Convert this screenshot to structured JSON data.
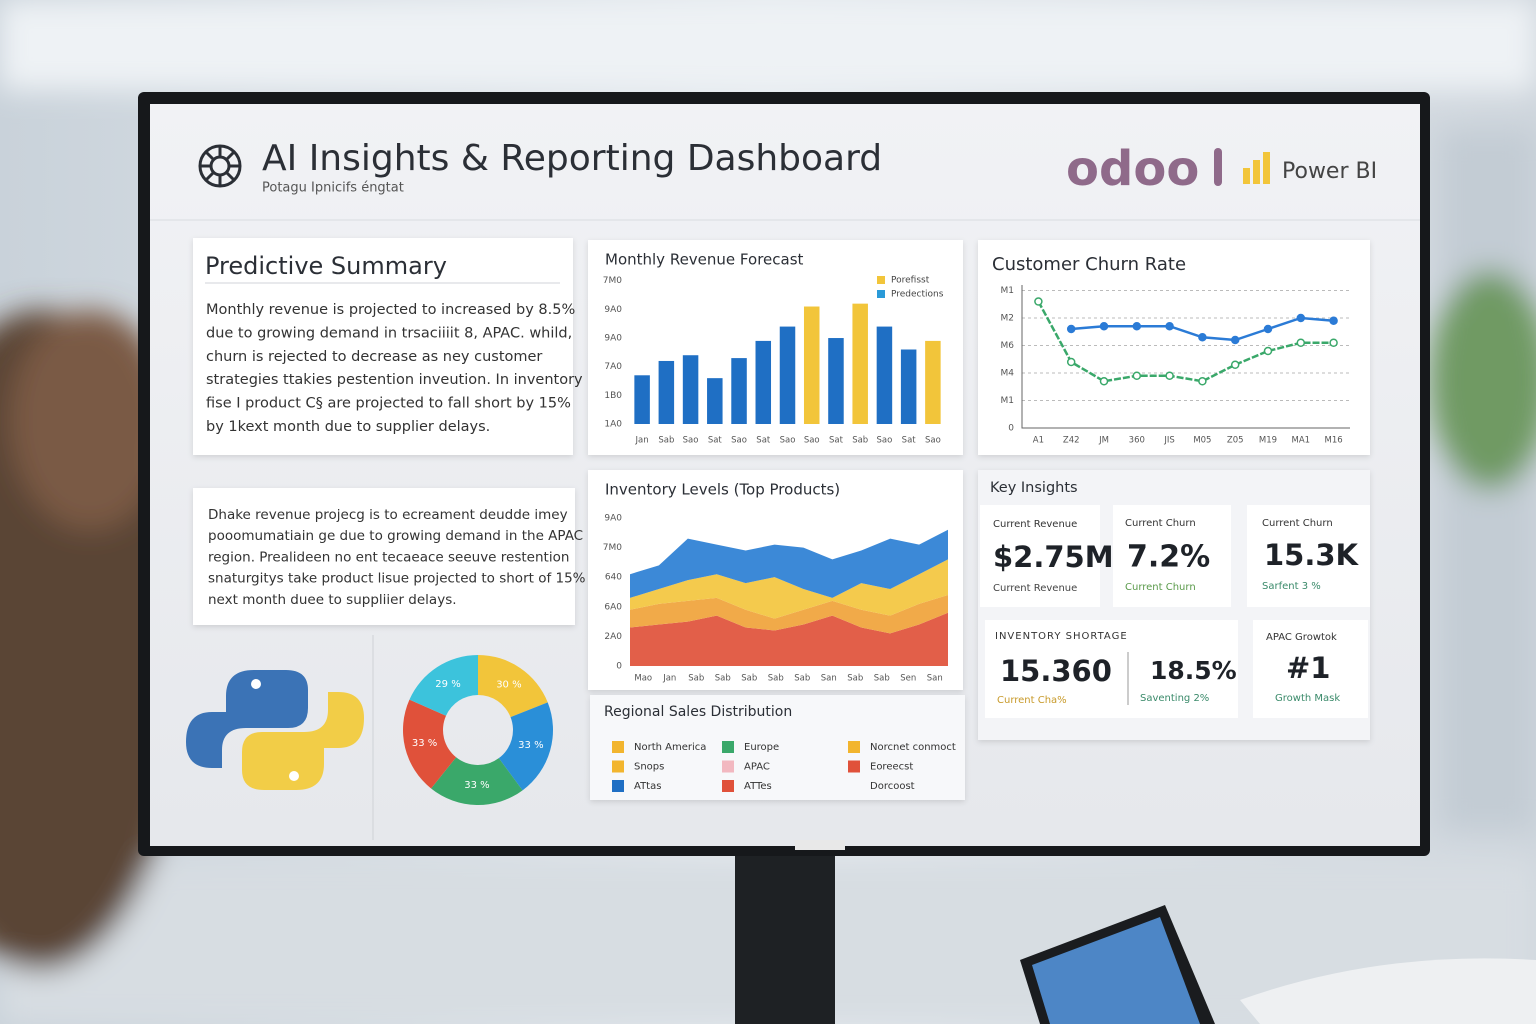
{
  "header": {
    "title": "AI Insights & Reporting Dashboard",
    "subtitle": "Potagu Ipnicifs éngtat",
    "brand_odoo": "odoo",
    "brand_powerbi": "Power BI"
  },
  "summary": {
    "title": "Predictive Summary",
    "lines": [
      "Monthly revenue is projected to increased by 8.5%",
      "due to growing demand in trsaciiiit 8, APAC. whild,",
      "churn is rejected to decrease as ney customer",
      "strategies ttakies pestention inveution. In inventory",
      "fise I product C§ are projected to fall short  by 15%",
      "by 1kext month due to supplier delays."
    ]
  },
  "summary2": {
    "lines": [
      "Dhake revenue projecg is to ecreament deudde imey",
      "pooomumatiain ge due to growing demand in the APAC",
      "region. Prealideen no ent tecaeace seeuve restention",
      "snaturgitys take product lisue projected to short of 15%",
      "next month duee to suppliier delays."
    ]
  },
  "chart_data": [
    {
      "type": "bar",
      "title": "Monthly Revenue Forecast",
      "categories": [
        "Jan",
        "Sab",
        "Sao",
        "Sat",
        "Sao",
        "Sat",
        "Sao",
        "Sao",
        "Sat",
        "Sab",
        "Sao",
        "Sat",
        "Sao"
      ],
      "values": [
        1.7,
        2.2,
        2.4,
        1.6,
        2.3,
        2.9,
        3.4,
        4.1,
        3.0,
        4.2,
        3.4,
        2.6,
        2.9
      ],
      "colors": [
        "#1f6fc4",
        "#1f6fc4",
        "#1f6fc4",
        "#1f6fc4",
        "#1f6fc4",
        "#1f6fc4",
        "#1f6fc4",
        "#f2c53a",
        "#1f6fc4",
        "#f2c53a",
        "#1f6fc4",
        "#1f6fc4",
        "#f2c53a"
      ],
      "legend": [
        {
          "name": "Porefisst",
          "color": "#f2c53a"
        },
        {
          "name": "Predections",
          "color": "#2a9ad8"
        }
      ],
      "ylim": [
        0,
        5.2
      ],
      "yticks": [
        {
          "value": 5,
          "label": "7M0"
        },
        {
          "value": 4,
          "label": "9A0"
        },
        {
          "value": 3,
          "label": "9A0"
        },
        {
          "value": 2,
          "label": "7A0"
        },
        {
          "value": 1,
          "label": "1B0"
        },
        {
          "value": 0,
          "label": "1A0"
        }
      ],
      "grid": false
    },
    {
      "type": "line",
      "title": "Customer Churn Rate",
      "categories": [
        "A1",
        "Z42",
        "JM",
        "360",
        "JIS",
        "M05",
        "Z05",
        "M19",
        "MA1",
        "M16"
      ],
      "series": [
        {
          "color": "#2b7bd6",
          "values": [
            null,
            3.6,
            3.7,
            3.7,
            3.7,
            3.3,
            3.2,
            3.6,
            4.0,
            3.9
          ]
        },
        {
          "color": "#3aa86a",
          "values": [
            4.6,
            2.4,
            1.7,
            1.9,
            1.9,
            1.7,
            2.3,
            2.8,
            3.1,
            3.1
          ]
        }
      ],
      "ylim": [
        0,
        5.2
      ],
      "yticks": [
        {
          "value": 5,
          "label": "M1"
        },
        {
          "value": 4,
          "label": "M2"
        },
        {
          "value": 3,
          "label": "M6"
        },
        {
          "value": 2,
          "label": "M4"
        },
        {
          "value": 1,
          "label": "M1"
        },
        0
      ],
      "grid": true
    },
    {
      "type": "area",
      "title": "Inventory Levels (Top Products)",
      "stacked": true,
      "categories": [
        "Mao",
        "Jan",
        "Sab",
        "Sab",
        "Sab",
        "Sab",
        "Sab",
        "San",
        "Sab",
        "Sab",
        "Sen",
        "San"
      ],
      "series": [
        {
          "color": "#e0513a",
          "values": [
            1.3,
            1.4,
            1.5,
            1.7,
            1.3,
            1.2,
            1.4,
            1.7,
            1.3,
            1.1,
            1.4,
            1.8
          ]
        },
        {
          "color": "#f0a33a",
          "values": [
            0.6,
            0.7,
            0.7,
            0.6,
            0.6,
            0.4,
            0.5,
            0.5,
            0.6,
            0.6,
            0.7,
            0.6
          ]
        },
        {
          "color": "#f3c63e",
          "values": [
            0.4,
            0.5,
            0.7,
            0.8,
            0.9,
            1.4,
            0.7,
            0.1,
            0.9,
            0.9,
            1.0,
            1.2
          ]
        },
        {
          "color": "#2b7fd4",
          "values": [
            0.8,
            0.8,
            1.4,
            1.0,
            1.1,
            1.1,
            1.4,
            1.3,
            1.1,
            1.7,
            1.0,
            1.0
          ]
        }
      ],
      "ylim": [
        0,
        5.1
      ],
      "yticks": [
        {
          "value": 5,
          "label": "9A0"
        },
        {
          "value": 4,
          "label": "7M0"
        },
        {
          "value": 3,
          "label": "640"
        },
        {
          "value": 2,
          "label": "6A0"
        },
        {
          "value": 1,
          "label": "2A0"
        },
        0
      ],
      "grid": false
    },
    {
      "type": "pie",
      "values": [
        30,
        33,
        33,
        33,
        29
      ],
      "value_labels": [
        "30 %",
        "33 %",
        "33 %",
        "33 %",
        "29 %"
      ],
      "colors": [
        "#f2c53a",
        "#2a8fd8",
        "#3aa86a",
        "#e0513a",
        "#3cc3dc"
      ]
    }
  ],
  "regional": {
    "title": "Regional Sales Distribution",
    "legend": [
      {
        "name": "North America",
        "color": "#f2b52e"
      },
      {
        "name": "Snops",
        "color": "#f2b52e"
      },
      {
        "name": "ATtas",
        "color": "#1f6fc4"
      },
      {
        "name": "Europe",
        "color": "#3aa86a"
      },
      {
        "name": "APAC",
        "color": "#f2b8c0"
      },
      {
        "name": "ATTes",
        "color": "#e0513a"
      },
      {
        "name": "Norcnet conmoct",
        "color": "#f2b52e"
      },
      {
        "name": "Eoreecst",
        "color": "#e0513a"
      },
      {
        "name": "Dorcoost"
      }
    ]
  },
  "insights": {
    "title": "Key Insights",
    "cards": [
      {
        "label": "Current Revenue",
        "value": "$2.75M",
        "sub": "Current Revenue"
      },
      {
        "label": "Current Churn",
        "value": "7.2%",
        "sub": "Current Churn"
      },
      {
        "label": "Current Churn",
        "value": "15.3K",
        "sub": "Sarfent 3 %"
      },
      {
        "label": "INVENTORY SHORTAGE",
        "value": "15.360",
        "sub": "Current Cha%"
      },
      {
        "value": "18.5%",
        "sub": "Saventing 2%"
      },
      {
        "label": "APAC Growtok",
        "value": "#1",
        "sub": "Growth Mask"
      }
    ]
  }
}
